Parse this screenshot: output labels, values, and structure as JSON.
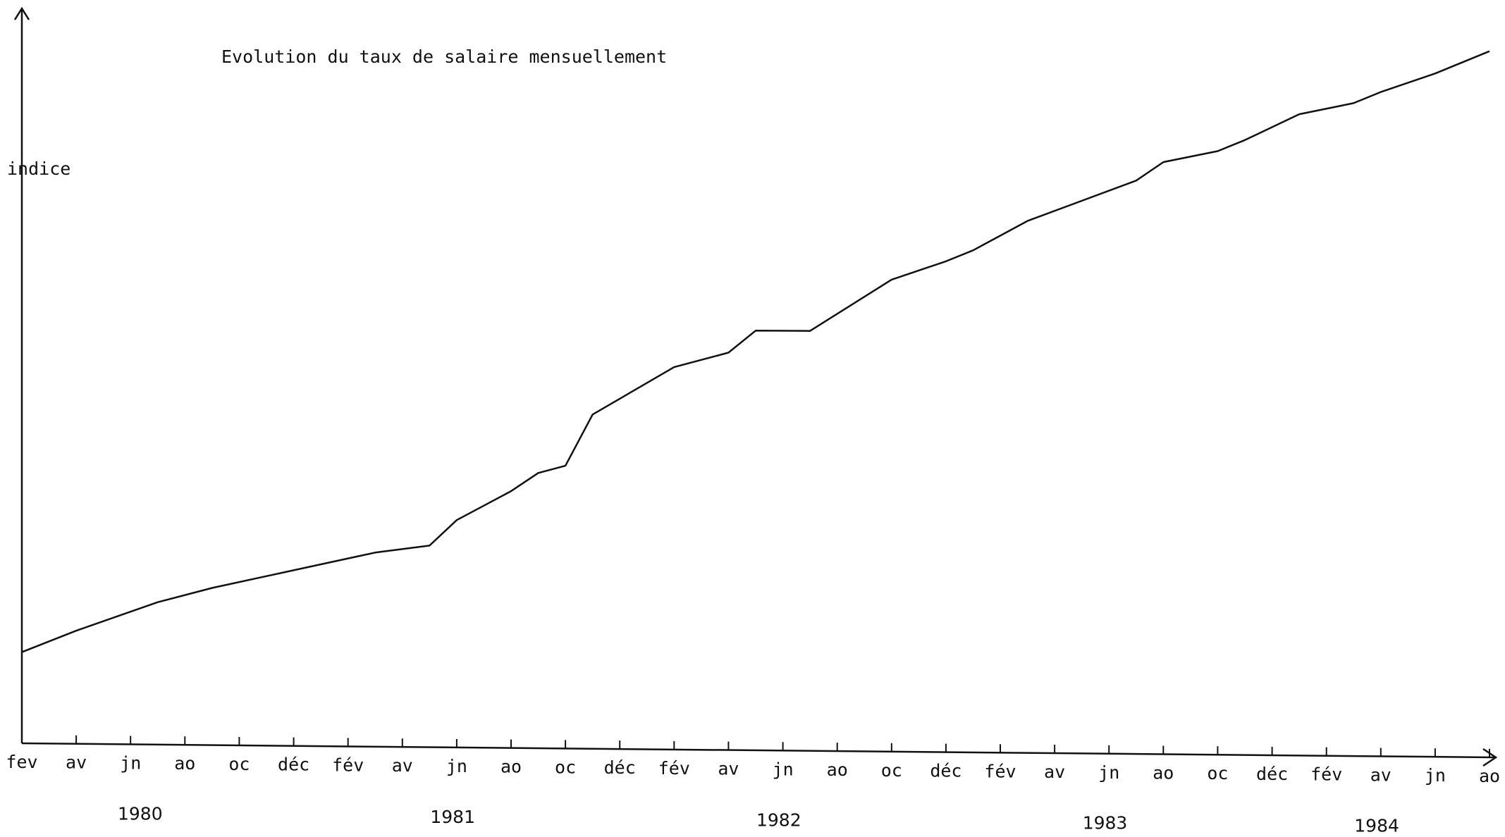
{
  "chart_data": {
    "type": "line",
    "title": "Evolution du taux de salaire mensuellement",
    "ylabel": "indice",
    "xlabel": "",
    "x_tick_labels": [
      "fev",
      "av",
      "jn",
      "ao",
      "oc",
      "déc",
      "fév",
      "av",
      "jn",
      "ao",
      "oc",
      "déc",
      "fév",
      "av",
      "jn",
      "ao",
      "oc",
      "déc",
      "fév",
      "av",
      "jn",
      "ao",
      "oc",
      "déc",
      "fév",
      "av",
      "jn",
      "ao"
    ],
    "years": [
      "1980",
      "1981",
      "1982",
      "1983",
      "1984"
    ],
    "x_start": "1980-02",
    "x_end": "1984-08",
    "x": [
      "1980-02",
      "1980-04",
      "1980-07",
      "1980-09",
      "1980-12",
      "1981-03",
      "1981-05",
      "1981-06",
      "1981-07",
      "1981-08",
      "1981-09",
      "1981-10",
      "1981-11",
      "1982-02",
      "1982-04",
      "1982-05",
      "1982-07",
      "1982-10",
      "1982-12",
      "1983-01",
      "1983-02",
      "1983-03",
      "1983-07",
      "1983-08",
      "1983-10",
      "1983-11",
      "1984-01",
      "1984-03",
      "1984-04",
      "1984-06",
      "1984-08"
    ],
    "series": [
      {
        "name": "",
        "values": [
          12.5,
          15.5,
          19.5,
          21.5,
          24,
          26.5,
          27.5,
          31,
          33,
          35,
          37.5,
          38.5,
          45.5,
          52,
          54,
          57,
          57,
          64,
          66.5,
          68,
          70,
          72,
          77.5,
          80,
          81.5,
          83,
          86.5,
          88,
          89.5,
          92,
          95
        ]
      }
    ],
    "ylim": [
      0,
      100
    ],
    "y_ticks_labeled": false,
    "grid": false,
    "legend": "none",
    "line_color": "#111111"
  }
}
